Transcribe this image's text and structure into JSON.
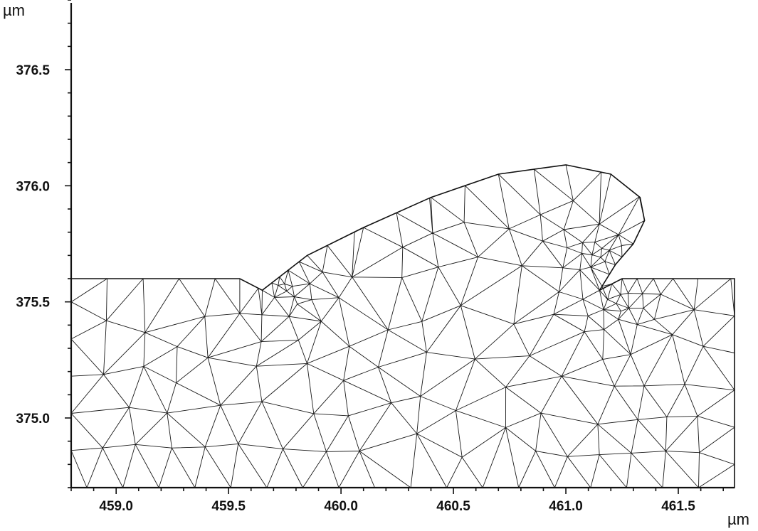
{
  "chart_data": {
    "type": "mesh",
    "title": "",
    "xlabel": "µm",
    "ylabel": "µm",
    "xlim": [
      458.8,
      461.75
    ],
    "ylim": [
      374.7,
      376.8
    ],
    "xticks": [
      459.0,
      459.5,
      460.0,
      460.5,
      461.0,
      461.5
    ],
    "yticks": [
      375.0,
      375.5,
      376.0,
      376.5
    ],
    "xtick_labels": [
      "459.0",
      "459.5",
      "460.0",
      "460.5",
      "461.0",
      "461.5"
    ],
    "ytick_labels": [
      "375.0",
      "375.5",
      "376.0",
      "376.5"
    ],
    "substrate_top_y": 375.6,
    "grid": false,
    "element_type": "triangular finite-element mesh",
    "dense_regions": [
      {
        "x": 459.75,
        "y": 375.55
      },
      {
        "x": 461.25,
        "y": 375.5
      },
      {
        "x": 461.15,
        "y": 375.7
      }
    ],
    "feature_outline": [
      [
        459.65,
        375.55
      ],
      [
        459.85,
        375.7
      ],
      [
        460.1,
        375.82
      ],
      [
        460.4,
        375.95
      ],
      [
        460.7,
        376.05
      ],
      [
        461.0,
        376.09
      ],
      [
        461.2,
        376.05
      ],
      [
        461.33,
        375.95
      ],
      [
        461.35,
        375.85
      ],
      [
        461.3,
        375.75
      ],
      [
        461.22,
        375.66
      ],
      [
        461.15,
        375.55
      ]
    ]
  }
}
